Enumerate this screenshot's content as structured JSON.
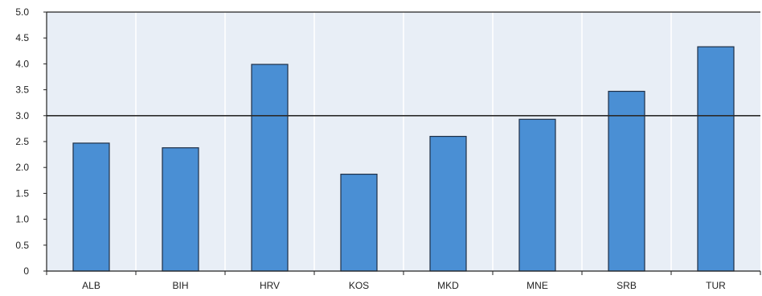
{
  "chart_data": {
    "type": "bar",
    "title": "",
    "xlabel": "",
    "ylabel": "",
    "categories": [
      "ALB",
      "BIH",
      "HRV",
      "KOS",
      "MKD",
      "MNE",
      "SRB",
      "TUR"
    ],
    "values": [
      2.47,
      2.38,
      3.99,
      1.87,
      2.6,
      2.93,
      3.47,
      4.33
    ],
    "ylim": [
      0,
      5
    ],
    "yticks": [
      "0",
      "0.5",
      "1.0",
      "1.5",
      "2.0",
      "2.5",
      "3.0",
      "3.5",
      "4.0",
      "4.5",
      "5.0"
    ],
    "reference_line": 3.0,
    "grid": "vertical",
    "legend": "none",
    "colors": {
      "bar_fill": "#4a8fd4",
      "bar_stroke": "#1f2f45",
      "plot_background": "#e8eef6",
      "gridline": "#ffffff",
      "reference_line": "#2b2b2b",
      "axis": "#222222"
    }
  }
}
